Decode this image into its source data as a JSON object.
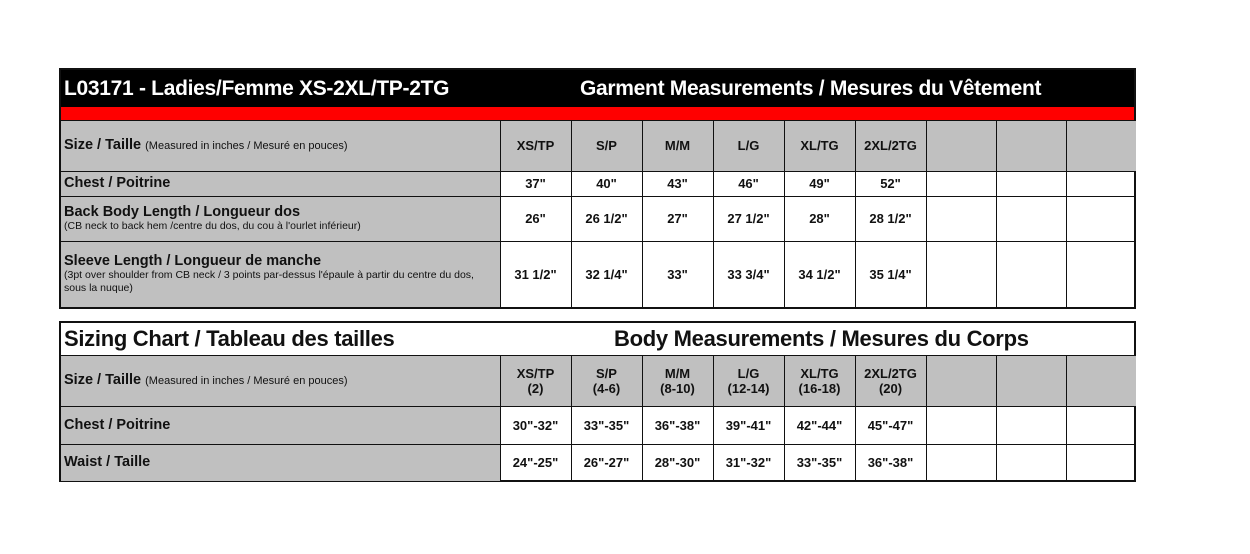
{
  "garment": {
    "title": "L03171 - Ladies/Femme XS-2XL/TP-2TG",
    "subtitle": "Garment Measurements / Mesures du Vêtement",
    "header": {
      "label": "Size / Taille",
      "note": "(Measured in inches / Mesuré en pouces)",
      "sizes": [
        "XS/TP",
        "S/P",
        "M/M",
        "L/G",
        "XL/TG",
        "2XL/2TG"
      ]
    },
    "rows": [
      {
        "label": "Chest / Poitrine",
        "sub": "",
        "values": [
          "37\"",
          "40\"",
          "43\"",
          "46\"",
          "49\"",
          "52\""
        ]
      },
      {
        "label": "Back Body Length / Longueur dos",
        "sub": "(CB neck to back hem /centre du dos, du cou à l'ourlet inférieur)",
        "values": [
          "26\"",
          "26 1/2\"",
          "27\"",
          "27 1/2\"",
          "28\"",
          "28 1/2\""
        ]
      },
      {
        "label": "Sleeve Length / Longueur de manche",
        "sub": "(3pt over shoulder from CB neck / 3 points par-dessus l'épaule à partir du centre du dos, sous la nuque)",
        "values": [
          "31 1/2\"",
          "32 1/4\"",
          "33\"",
          "33 3/4\"",
          "34 1/2\"",
          "35 1/4\""
        ]
      }
    ]
  },
  "body": {
    "title": "Sizing Chart / Tableau des tailles",
    "subtitle": "Body Measurements / Mesures du Corps",
    "header": {
      "label": "Size / Taille",
      "note": "(Measured in inches / Mesuré en pouces)",
      "sizes": [
        "XS/TP",
        "S/P",
        "M/M",
        "L/G",
        "XL/TG",
        "2XL/2TG"
      ],
      "numeric": [
        "(2)",
        "(4-6)",
        "(8-10)",
        "(12-14)",
        "(16-18)",
        "(20)"
      ]
    },
    "rows": [
      {
        "label": "Chest / Poitrine",
        "sub": "",
        "values": [
          "30\"-32\"",
          "33\"-35\"",
          "36\"-38\"",
          "39\"-41\"",
          "42\"-44\"",
          "45\"-47\""
        ]
      },
      {
        "label": "Waist / Taille",
        "sub": "",
        "values": [
          "24\"-25\"",
          "26\"-27\"",
          "28\"-30\"",
          "31\"-32\"",
          "33\"-35\"",
          "36\"-38\""
        ]
      }
    ]
  },
  "colors": {
    "title_bar": "#000000",
    "accent_stripe": "#ff0000",
    "header_fill": "#c0c0c0"
  }
}
